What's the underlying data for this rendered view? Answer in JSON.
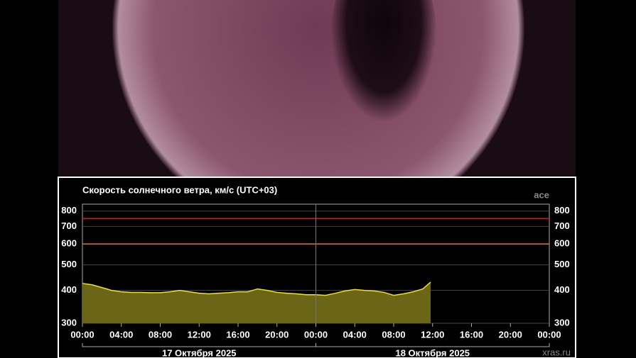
{
  "chart_data": {
    "type": "area",
    "title": "Скорость солнечного ветра, км/с (UTC+03)",
    "source": "ace",
    "credit": "xras.ru",
    "dates": [
      "17 Октября 2025",
      "18 Октября 2025"
    ],
    "x": [
      0,
      1,
      2,
      3,
      4,
      5,
      6,
      7,
      8,
      9,
      10,
      11,
      12,
      13,
      14,
      15,
      16,
      17,
      18,
      19,
      20,
      21,
      22,
      23,
      24,
      25,
      26,
      27,
      28,
      29,
      30,
      31,
      32,
      33,
      34,
      35,
      35.8
    ],
    "values": [
      425,
      420,
      410,
      400,
      395,
      393,
      393,
      392,
      392,
      395,
      400,
      395,
      390,
      388,
      390,
      392,
      395,
      395,
      405,
      400,
      393,
      390,
      388,
      385,
      385,
      383,
      390,
      398,
      403,
      400,
      398,
      393,
      383,
      388,
      395,
      405,
      430
    ],
    "color": "#f2e21a",
    "fill": "#6b6518",
    "xlim": [
      0,
      48
    ],
    "xticks": [
      {
        "value": 0,
        "label": "00:00"
      },
      {
        "value": 4,
        "label": "04:00"
      },
      {
        "value": 8,
        "label": "08:00"
      },
      {
        "value": 12,
        "label": "12:00"
      },
      {
        "value": 16,
        "label": "16:00"
      },
      {
        "value": 20,
        "label": "20:00"
      },
      {
        "value": 24,
        "label": "00:00"
      },
      {
        "value": 28,
        "label": "04:00"
      },
      {
        "value": 32,
        "label": "08:00"
      },
      {
        "value": 36,
        "label": "12:00"
      },
      {
        "value": 40,
        "label": "16:00"
      },
      {
        "value": 44,
        "label": "20:00"
      },
      {
        "value": 48,
        "label": "00:00"
      }
    ],
    "ylim": [
      300,
      850
    ],
    "yticks": [
      300,
      400,
      500,
      600,
      700,
      800
    ],
    "log_scale": true,
    "thresholds": [
      {
        "value": 750,
        "color": "#d11a1a"
      },
      {
        "value": 600,
        "color": "#e07a10"
      }
    ]
  }
}
